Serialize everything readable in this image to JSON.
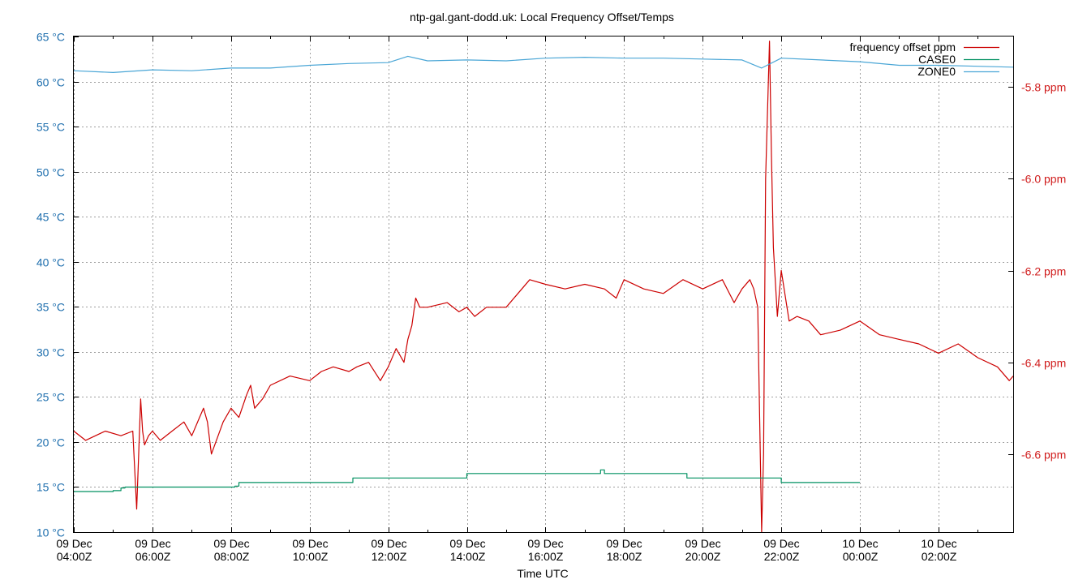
{
  "chart_data": {
    "type": "line",
    "title": "ntp-gal.gant-dodd.uk: Local Frequency Offset/Temps",
    "xlabel": "Time UTC",
    "x_ticks": [
      {
        "date": "09 Dec",
        "time": "04:00Z",
        "hour": 0
      },
      {
        "date": "09 Dec",
        "time": "06:00Z",
        "hour": 2
      },
      {
        "date": "09 Dec",
        "time": "08:00Z",
        "hour": 4
      },
      {
        "date": "09 Dec",
        "time": "10:00Z",
        "hour": 6
      },
      {
        "date": "09 Dec",
        "time": "12:00Z",
        "hour": 8
      },
      {
        "date": "09 Dec",
        "time": "14:00Z",
        "hour": 10
      },
      {
        "date": "09 Dec",
        "time": "16:00Z",
        "hour": 12
      },
      {
        "date": "09 Dec",
        "time": "18:00Z",
        "hour": 14
      },
      {
        "date": "09 Dec",
        "time": "20:00Z",
        "hour": 16
      },
      {
        "date": "09 Dec",
        "time": "22:00Z",
        "hour": 18
      },
      {
        "date": "10 Dec",
        "time": "00:00Z",
        "hour": 20
      },
      {
        "date": "10 Dec",
        "time": "02:00Z",
        "hour": 22
      }
    ],
    "xlim_hours": [
      0,
      23.9
    ],
    "y_left": {
      "unit": "°C",
      "ylim": [
        10,
        65
      ],
      "ticks": [
        "10 °C",
        "15 °C",
        "20 °C",
        "25 °C",
        "30 °C",
        "35 °C",
        "40 °C",
        "45 °C",
        "50 °C",
        "55 °C",
        "60 °C",
        "65 °C"
      ],
      "tick_values": [
        10,
        15,
        20,
        25,
        30,
        35,
        40,
        45,
        50,
        55,
        60,
        65
      ],
      "color": "#1f6fae"
    },
    "y_right": {
      "unit": "ppm",
      "ylim": [
        -6.77,
        -5.69
      ],
      "ticks": [
        "-5.8 ppm",
        "-6.0 ppm",
        "-6.2 ppm",
        "-6.4 ppm",
        "-6.6 ppm"
      ],
      "tick_values": [
        -5.8,
        -6.0,
        -6.2,
        -6.4,
        -6.6
      ],
      "color": "#d01c1c"
    },
    "grid": true,
    "legend_position": "top-right",
    "series": [
      {
        "name": "frequency offset ppm",
        "axis": "right",
        "color": "#cc0000",
        "x": [
          0,
          0.3,
          0.8,
          1.2,
          1.5,
          1.6,
          1.7,
          1.75,
          1.8,
          1.9,
          2.0,
          2.2,
          2.5,
          2.8,
          3.0,
          3.2,
          3.3,
          3.4,
          3.5,
          3.8,
          4.0,
          4.2,
          4.4,
          4.5,
          4.6,
          4.8,
          5.0,
          5.5,
          6.0,
          6.3,
          6.6,
          7.0,
          7.2,
          7.5,
          7.8,
          8.0,
          8.2,
          8.4,
          8.5,
          8.6,
          8.7,
          8.8,
          9.0,
          9.5,
          9.8,
          10.0,
          10.2,
          10.5,
          11.0,
          11.3,
          11.6,
          12.0,
          12.5,
          13.0,
          13.5,
          13.8,
          14.0,
          14.5,
          15.0,
          15.5,
          16.0,
          16.5,
          16.8,
          17.0,
          17.2,
          17.3,
          17.4,
          17.5,
          17.55,
          17.6,
          17.7,
          17.75,
          17.8,
          17.9,
          18.0,
          18.2,
          18.4,
          18.7,
          19.0,
          19.5,
          20.0,
          20.5,
          21.0,
          21.5,
          22.0,
          22.5,
          23.0,
          23.5,
          23.8,
          23.9
        ],
        "y": [
          -6.55,
          -6.57,
          -6.55,
          -6.56,
          -6.55,
          -6.72,
          -6.48,
          -6.55,
          -6.58,
          -6.56,
          -6.55,
          -6.57,
          -6.55,
          -6.53,
          -6.56,
          -6.52,
          -6.5,
          -6.53,
          -6.6,
          -6.53,
          -6.5,
          -6.52,
          -6.47,
          -6.45,
          -6.5,
          -6.48,
          -6.45,
          -6.43,
          -6.44,
          -6.42,
          -6.41,
          -6.42,
          -6.41,
          -6.4,
          -6.44,
          -6.41,
          -6.37,
          -6.4,
          -6.35,
          -6.32,
          -6.26,
          -6.28,
          -6.28,
          -6.27,
          -6.29,
          -6.28,
          -6.3,
          -6.28,
          -6.28,
          -6.25,
          -6.22,
          -6.23,
          -6.24,
          -6.23,
          -6.24,
          -6.26,
          -6.22,
          -6.24,
          -6.25,
          -6.22,
          -6.24,
          -6.22,
          -6.27,
          -6.24,
          -6.22,
          -6.24,
          -6.28,
          -6.77,
          -6.6,
          -6.0,
          -5.7,
          -5.95,
          -6.15,
          -6.3,
          -6.2,
          -6.31,
          -6.3,
          -6.31,
          -6.34,
          -6.33,
          -6.31,
          -6.34,
          -6.35,
          -6.36,
          -6.38,
          -6.36,
          -6.39,
          -6.41,
          -6.44,
          -6.43
        ]
      },
      {
        "name": "CASE0",
        "axis": "left",
        "color": "#009060",
        "x": [
          0,
          0.9,
          1.0,
          1.2,
          1.3,
          2.0,
          3.0,
          4.0,
          4.1,
          4.2,
          5.0,
          6.0,
          7.0,
          7.1,
          8.0,
          9.0,
          9.5,
          10.0,
          12.0,
          13.3,
          13.4,
          13.5,
          13.6,
          14.0,
          15.0,
          15.5,
          15.6,
          17.0,
          17.9,
          18.0,
          19.0,
          20.0
        ],
        "y": [
          14.5,
          14.5,
          14.6,
          14.9,
          15.0,
          15.0,
          15.0,
          15.0,
          15.1,
          15.5,
          15.5,
          15.5,
          15.5,
          16.0,
          16.0,
          16.0,
          16.0,
          16.5,
          16.5,
          16.5,
          16.9,
          16.5,
          16.5,
          16.5,
          16.5,
          16.5,
          16.0,
          16.0,
          16.0,
          15.5,
          15.5,
          15.5
        ]
      },
      {
        "name": "ZONE0",
        "axis": "left",
        "color": "#4aa6d6",
        "x": [
          0,
          1.0,
          2.0,
          3.0,
          4.0,
          5.0,
          6.0,
          7.0,
          8.0,
          8.5,
          9.0,
          10.0,
          11.0,
          12.0,
          13.0,
          14.0,
          15.0,
          16.0,
          17.0,
          17.5,
          18.0,
          19.0,
          20.0,
          21.0,
          22.0,
          23.0,
          23.9
        ],
        "y": [
          61.2,
          61.0,
          61.3,
          61.2,
          61.5,
          61.5,
          61.8,
          62.0,
          62.1,
          62.8,
          62.3,
          62.4,
          62.3,
          62.6,
          62.7,
          62.6,
          62.6,
          62.5,
          62.4,
          61.5,
          62.6,
          62.4,
          62.2,
          61.8,
          61.8,
          61.7,
          61.6
        ]
      }
    ]
  }
}
